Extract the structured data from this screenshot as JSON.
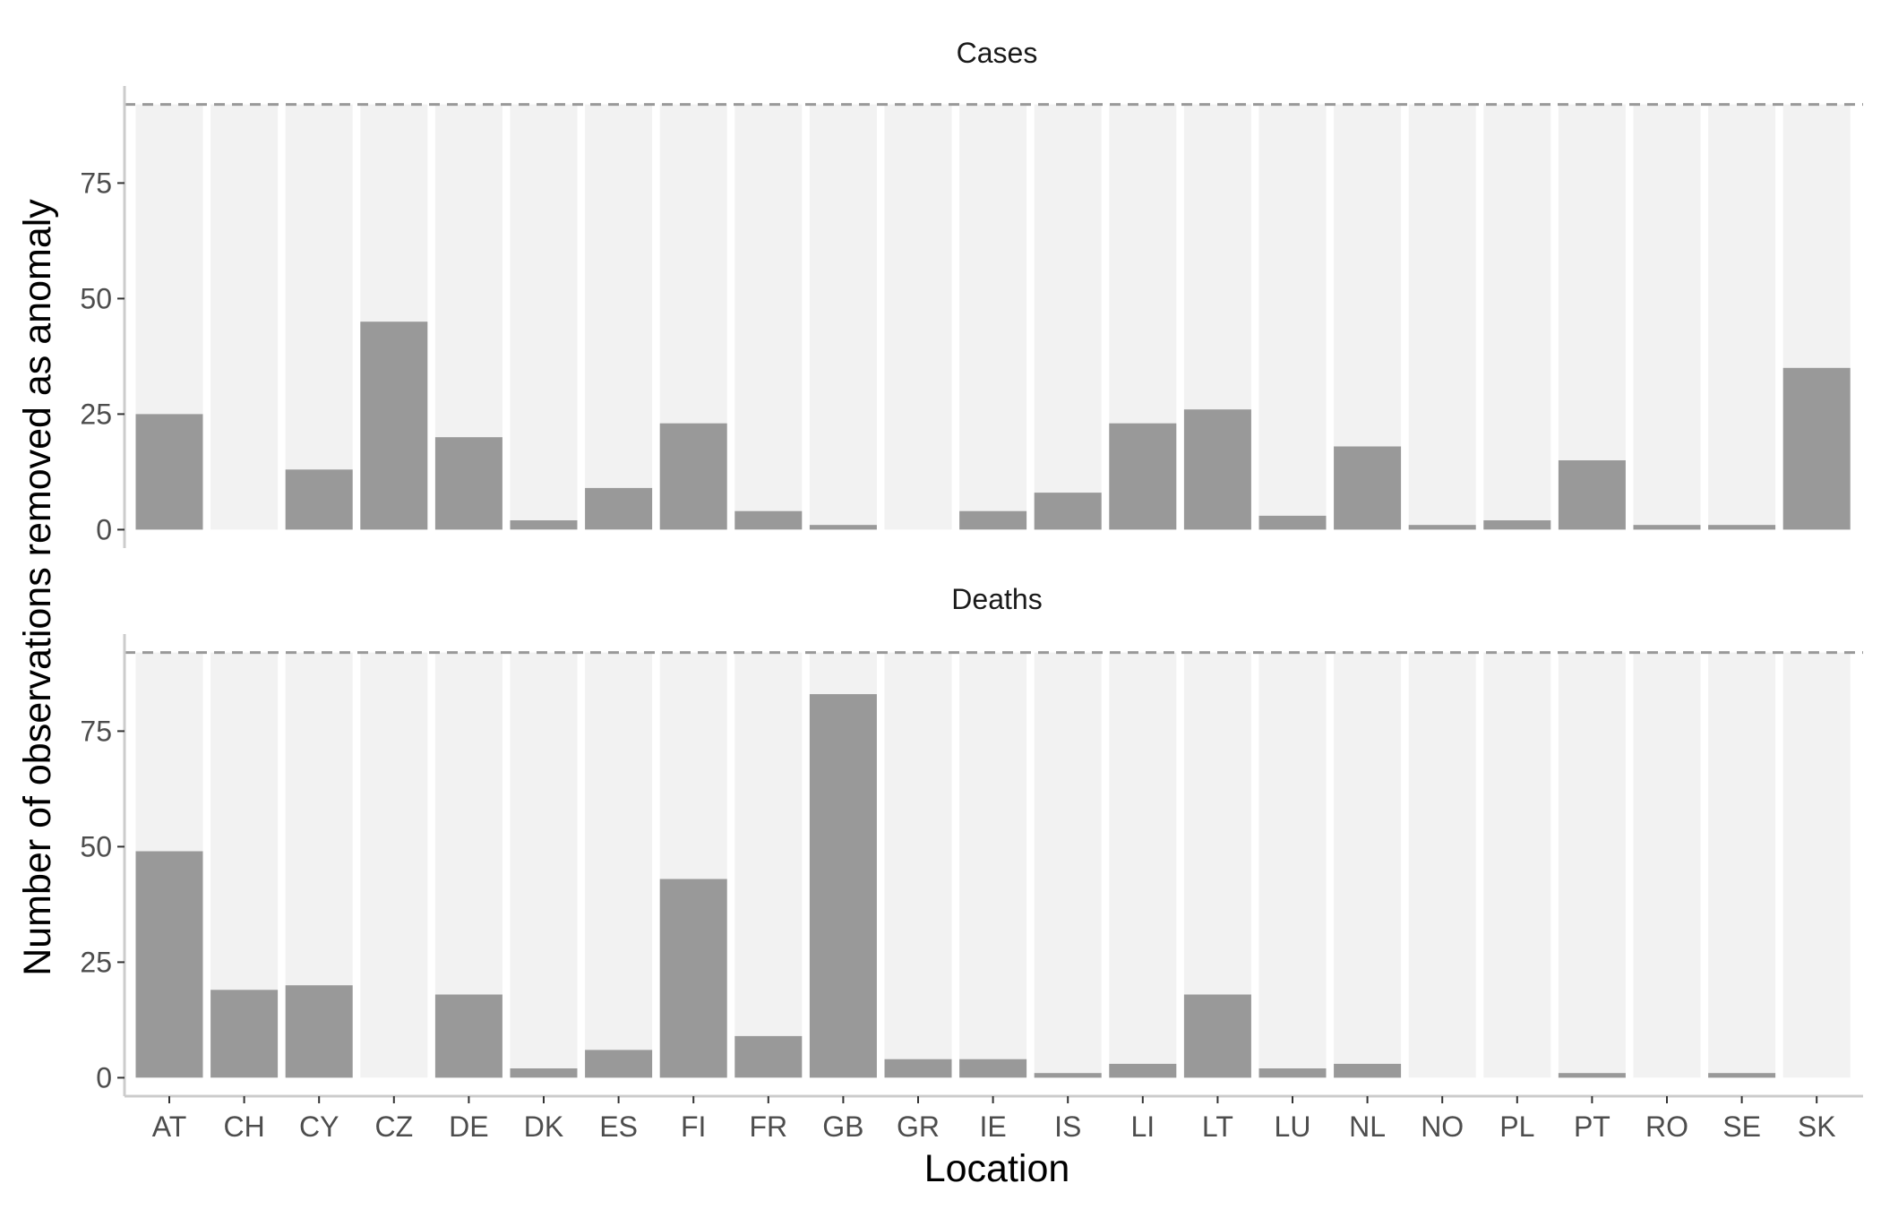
{
  "chart_data": {
    "type": "bar",
    "xlabel": "Location",
    "ylabel": "Number of observations removed as anomaly",
    "ylim": [
      -4,
      96
    ],
    "yticks": [
      0,
      25,
      50,
      75
    ],
    "reference_line": {
      "y": 92,
      "style": "dashed"
    },
    "grid": false,
    "colors": {
      "bar": "#999999",
      "background_bar": "#f2f2f2",
      "reference_line": "#999999",
      "axis": "#cccccc"
    },
    "categories": [
      "AT",
      "CH",
      "CY",
      "CZ",
      "DE",
      "DK",
      "ES",
      "FI",
      "FR",
      "GB",
      "GR",
      "IE",
      "IS",
      "LI",
      "LT",
      "LU",
      "NL",
      "NO",
      "PL",
      "PT",
      "RO",
      "SE",
      "SK"
    ],
    "panels": [
      {
        "title": "Cases",
        "values": [
          25,
          0,
          13,
          45,
          20,
          2,
          9,
          23,
          4,
          1,
          0,
          4,
          8,
          23,
          26,
          3,
          18,
          1,
          2,
          15,
          1,
          1,
          35
        ]
      },
      {
        "title": "Deaths",
        "values": [
          49,
          19,
          20,
          0,
          18,
          2,
          6,
          43,
          9,
          83,
          4,
          4,
          1,
          3,
          18,
          2,
          3,
          0,
          0,
          1,
          0,
          1,
          0
        ]
      }
    ]
  }
}
